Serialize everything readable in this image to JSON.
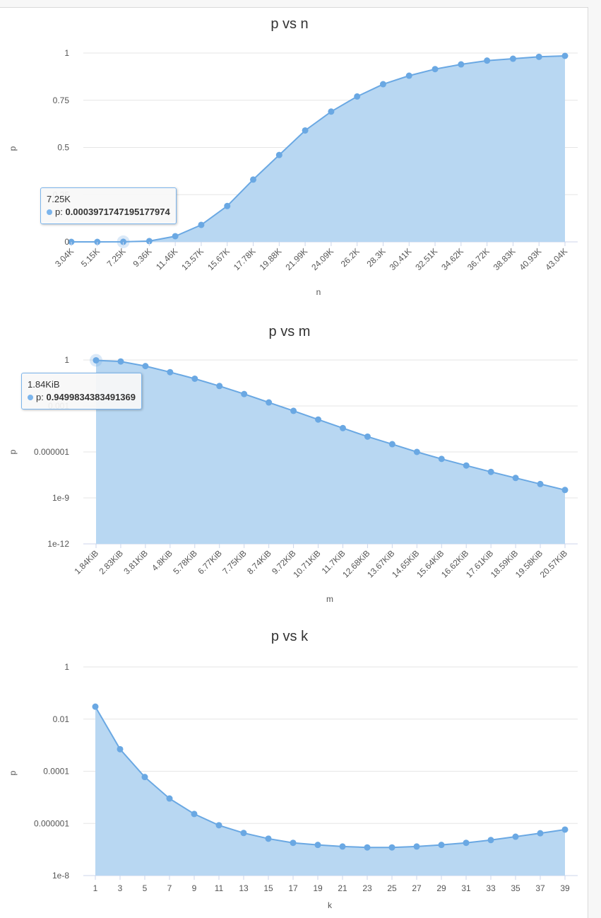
{
  "colors": {
    "area": "#b8d7f2",
    "line": "#6aa8e3",
    "tooltip_border": "#7cb5ec"
  },
  "chart_data": [
    {
      "type": "area",
      "title": "p vs n",
      "xlabel": "n",
      "ylabel": "p",
      "yscale": "linear",
      "ylim": [
        0,
        1
      ],
      "yticks": [
        "0",
        "0.25",
        "0.5",
        "0.75",
        "1"
      ],
      "grid": true,
      "categories": [
        "3.04K",
        "5.15K",
        "7.25K",
        "9.36K",
        "11.46K",
        "13.57K",
        "15.67K",
        "17.78K",
        "19.88K",
        "21.99K",
        "24.09K",
        "26.2K",
        "28.3K",
        "30.41K",
        "32.51K",
        "34.62K",
        "36.72K",
        "38.83K",
        "40.93K",
        "43.04K"
      ],
      "values": [
        0.0,
        0.0,
        0.0004,
        0.004,
        0.03,
        0.09,
        0.19,
        0.33,
        0.46,
        0.59,
        0.69,
        0.77,
        0.835,
        0.88,
        0.915,
        0.94,
        0.96,
        0.97,
        0.98,
        0.985
      ],
      "tooltip": {
        "x": "7.25K",
        "series": "p",
        "value": "0.0003971747195177974"
      }
    },
    {
      "type": "area",
      "title": "p vs m",
      "xlabel": "m",
      "ylabel": "p",
      "yscale": "log",
      "ylim": [
        1e-12,
        1
      ],
      "yticks": [
        "1e-12",
        "1e-9",
        "0.000001",
        "0.001",
        "1"
      ],
      "grid": true,
      "categories": [
        "1.84KiB",
        "2.83KiB",
        "3.81KiB",
        "4.8KiB",
        "5.78KiB",
        "6.77KiB",
        "7.75KiB",
        "8.74KiB",
        "9.72KiB",
        "10.71KiB",
        "11.7KiB",
        "12.68KiB",
        "13.67KiB",
        "14.65KiB",
        "15.64KiB",
        "16.62KiB",
        "17.61KiB",
        "18.59KiB",
        "19.58KiB",
        "20.57KiB"
      ],
      "values": [
        0.95,
        0.8,
        0.4,
        0.16,
        0.06,
        0.02,
        0.006,
        0.0017,
        0.00048,
        0.00013,
        3.6e-05,
        1e-05,
        3.2e-06,
        1e-06,
        3.5e-07,
        1.3e-07,
        5e-08,
        2e-08,
        8e-09,
        3.3e-09
      ],
      "tooltip": {
        "x": "1.84KiB",
        "series": "p",
        "value": "0.9499834383491369"
      }
    },
    {
      "type": "area",
      "title": "p vs k",
      "xlabel": "k",
      "ylabel": "p",
      "yscale": "log",
      "ylim": [
        1e-08,
        1
      ],
      "yticks": [
        "1e-8",
        "0.000001",
        "0.0001",
        "0.01",
        "1"
      ],
      "grid": true,
      "categories": [
        "1",
        "3",
        "5",
        "7",
        "9",
        "11",
        "13",
        "15",
        "17",
        "19",
        "21",
        "23",
        "25",
        "27",
        "29",
        "31",
        "33",
        "35",
        "37",
        "39"
      ],
      "values": [
        0.03,
        0.0007,
        6e-05,
        9e-06,
        2.3e-06,
        8.5e-07,
        4.3e-07,
        2.6e-07,
        1.8e-07,
        1.5e-07,
        1.3e-07,
        1.2e-07,
        1.2e-07,
        1.3e-07,
        1.5e-07,
        1.8e-07,
        2.3e-07,
        3.1e-07,
        4.2e-07,
        5.8e-07
      ]
    }
  ]
}
